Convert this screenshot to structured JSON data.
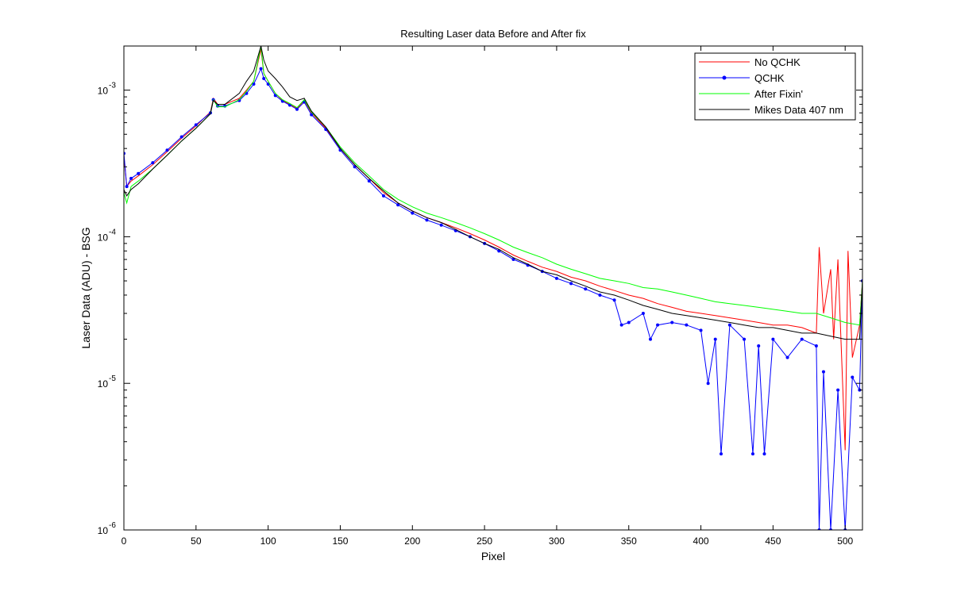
{
  "chart_data": {
    "type": "line",
    "title": "Resulting Laser data Before and After fix",
    "xlabel": "Pixel",
    "ylabel": "Laser Data (ADU) - BSG",
    "xlim": [
      0,
      512
    ],
    "ylim": [
      1e-06,
      0.002
    ],
    "yscale": "log",
    "grid": false,
    "legend_position": "top-right",
    "x_ticks": [
      0,
      50,
      100,
      150,
      200,
      250,
      300,
      350,
      400,
      450,
      500
    ],
    "y_ticks": [
      {
        "value": 1e-06,
        "base": "10",
        "exp": "-6"
      },
      {
        "value": 1e-05,
        "base": "10",
        "exp": "-5"
      },
      {
        "value": 0.0001,
        "base": "10",
        "exp": "-4"
      },
      {
        "value": 0.001,
        "base": "10",
        "exp": "-3"
      }
    ],
    "series": [
      {
        "name": "No QCHK",
        "color": "#ff0000",
        "marker": "none",
        "x": [
          0,
          2,
          5,
          10,
          20,
          30,
          40,
          50,
          60,
          62,
          65,
          70,
          80,
          85,
          90,
          95,
          97,
          100,
          105,
          110,
          115,
          120,
          125,
          130,
          140,
          150,
          160,
          170,
          180,
          190,
          200,
          210,
          220,
          230,
          240,
          250,
          260,
          270,
          280,
          290,
          300,
          310,
          320,
          330,
          340,
          350,
          360,
          370,
          380,
          390,
          400,
          410,
          420,
          430,
          440,
          450,
          460,
          470,
          480,
          482,
          485,
          490,
          492,
          495,
          500,
          502,
          505,
          510,
          512
        ],
        "y": [
          0.00036,
          0.00022,
          0.00024,
          0.00026,
          0.00031,
          0.00038,
          0.00047,
          0.00057,
          0.00071,
          0.00088,
          0.0008,
          0.0008,
          0.00088,
          0.001,
          0.00115,
          0.0019,
          0.0013,
          0.00115,
          0.00095,
          0.00085,
          0.0008,
          0.00075,
          0.00085,
          0.0007,
          0.00055,
          0.0004,
          0.00031,
          0.00025,
          0.0002,
          0.00017,
          0.00015,
          0.000135,
          0.000125,
          0.000115,
          0.000105,
          9.5e-05,
          8.5e-05,
          7.5e-05,
          6.8e-05,
          6.2e-05,
          5.8e-05,
          5.3e-05,
          5e-05,
          4.6e-05,
          4.3e-05,
          4e-05,
          3.8e-05,
          3.5e-05,
          3.3e-05,
          3.1e-05,
          3e-05,
          2.9e-05,
          2.8e-05,
          2.7e-05,
          2.6e-05,
          2.5e-05,
          2.5e-05,
          2.4e-05,
          2.2e-05,
          8.5e-05,
          3e-05,
          6e-05,
          2e-05,
          7e-05,
          3.5e-06,
          8e-05,
          1.5e-05,
          2.5e-05,
          5e-05
        ]
      },
      {
        "name": "QCHK",
        "color": "#0000ff",
        "marker": "dot",
        "x": [
          0,
          2,
          5,
          10,
          20,
          30,
          40,
          50,
          60,
          62,
          65,
          70,
          80,
          85,
          90,
          95,
          97,
          100,
          105,
          110,
          115,
          120,
          125,
          130,
          140,
          150,
          160,
          170,
          180,
          190,
          200,
          210,
          220,
          230,
          240,
          250,
          260,
          270,
          280,
          290,
          300,
          310,
          320,
          330,
          340,
          345,
          350,
          360,
          365,
          370,
          380,
          390,
          400,
          405,
          410,
          414,
          420,
          430,
          436,
          440,
          444,
          450,
          460,
          470,
          480,
          482,
          485,
          490,
          495,
          500,
          505,
          510,
          512
        ],
        "y": [
          0.00037,
          0.00022,
          0.00025,
          0.00027,
          0.00032,
          0.00039,
          0.00048,
          0.00058,
          0.0007,
          0.00086,
          0.00078,
          0.00078,
          0.00085,
          0.00095,
          0.0011,
          0.0014,
          0.0012,
          0.0011,
          0.00092,
          0.00084,
          0.00079,
          0.00074,
          0.00083,
          0.00068,
          0.00054,
          0.00039,
          0.0003,
          0.00024,
          0.00019,
          0.000165,
          0.000145,
          0.00013,
          0.00012,
          0.00011,
          0.0001,
          9e-05,
          8e-05,
          7e-05,
          6.4e-05,
          5.8e-05,
          5.2e-05,
          4.8e-05,
          4.4e-05,
          4e-05,
          3.7e-05,
          2.5e-05,
          2.6e-05,
          3e-05,
          2e-05,
          2.5e-05,
          2.6e-05,
          2.5e-05,
          2.3e-05,
          1e-05,
          2e-05,
          3.3e-06,
          2.5e-05,
          2e-05,
          3.3e-06,
          1.8e-05,
          3.3e-06,
          2e-05,
          1.5e-05,
          2e-05,
          1.8e-05,
          1e-06,
          1.2e-05,
          1e-06,
          9e-06,
          1e-06,
          1.1e-05,
          9e-06,
          5e-05
        ]
      },
      {
        "name": "After Fixin'",
        "color": "#00ff00",
        "marker": "none",
        "x": [
          0,
          2,
          5,
          10,
          20,
          30,
          40,
          50,
          60,
          62,
          65,
          70,
          80,
          85,
          90,
          95,
          97,
          100,
          105,
          110,
          115,
          120,
          125,
          130,
          140,
          150,
          160,
          170,
          180,
          190,
          200,
          210,
          220,
          230,
          240,
          250,
          260,
          270,
          280,
          290,
          300,
          310,
          320,
          330,
          340,
          350,
          360,
          370,
          380,
          390,
          400,
          410,
          420,
          430,
          440,
          450,
          460,
          470,
          480,
          490,
          500,
          510,
          512
        ],
        "y": [
          0.0002,
          0.00017,
          0.00022,
          0.00024,
          0.00029,
          0.00036,
          0.00045,
          0.00055,
          0.00069,
          0.00086,
          0.00077,
          0.00077,
          0.00086,
          0.00098,
          0.00115,
          0.002,
          0.0013,
          0.00115,
          0.00095,
          0.00086,
          0.00081,
          0.00076,
          0.00086,
          0.00071,
          0.00056,
          0.00041,
          0.00032,
          0.00026,
          0.00021,
          0.00018,
          0.00016,
          0.000145,
          0.000135,
          0.000125,
          0.000115,
          0.000105,
          9.5e-05,
          8.5e-05,
          7.8e-05,
          7.2e-05,
          6.5e-05,
          6e-05,
          5.6e-05,
          5.2e-05,
          5e-05,
          4.8e-05,
          4.5e-05,
          4.4e-05,
          4.2e-05,
          4e-05,
          3.8e-05,
          3.6e-05,
          3.5e-05,
          3.4e-05,
          3.3e-05,
          3.2e-05,
          3.1e-05,
          3e-05,
          3e-05,
          2.8e-05,
          2.6e-05,
          2.5e-05,
          5e-05
        ]
      },
      {
        "name": "Mikes Data 407 nm",
        "color": "#000000",
        "marker": "none",
        "x": [
          0,
          2,
          5,
          10,
          20,
          30,
          40,
          50,
          60,
          62,
          65,
          70,
          80,
          85,
          90,
          95,
          97,
          100,
          105,
          110,
          115,
          120,
          125,
          130,
          140,
          150,
          160,
          170,
          180,
          190,
          200,
          210,
          220,
          230,
          240,
          250,
          260,
          270,
          280,
          290,
          300,
          310,
          320,
          330,
          340,
          350,
          360,
          370,
          380,
          390,
          400,
          410,
          420,
          430,
          440,
          450,
          460,
          470,
          480,
          490,
          500,
          510,
          512
        ],
        "y": [
          0.00021,
          0.00019,
          0.00021,
          0.00023,
          0.00029,
          0.00036,
          0.00045,
          0.00055,
          0.00069,
          0.00085,
          0.0008,
          0.0008,
          0.00095,
          0.00115,
          0.00135,
          0.002,
          0.0016,
          0.00135,
          0.0012,
          0.00105,
          0.0009,
          0.00085,
          0.00088,
          0.00072,
          0.00056,
          0.0004,
          0.00031,
          0.00025,
          0.000205,
          0.00017,
          0.00015,
          0.000135,
          0.000125,
          0.000112,
          0.0001,
          9e-05,
          8.2e-05,
          7.2e-05,
          6.5e-05,
          5.8e-05,
          5.5e-05,
          5e-05,
          4.6e-05,
          4.2e-05,
          4e-05,
          3.7e-05,
          3.4e-05,
          3.2e-05,
          3e-05,
          2.9e-05,
          2.8e-05,
          2.7e-05,
          2.6e-05,
          2.5e-05,
          2.4e-05,
          2.4e-05,
          2.3e-05,
          2.2e-05,
          2.2e-05,
          2.1e-05,
          2e-05,
          2e-05,
          5e-05
        ]
      }
    ]
  }
}
